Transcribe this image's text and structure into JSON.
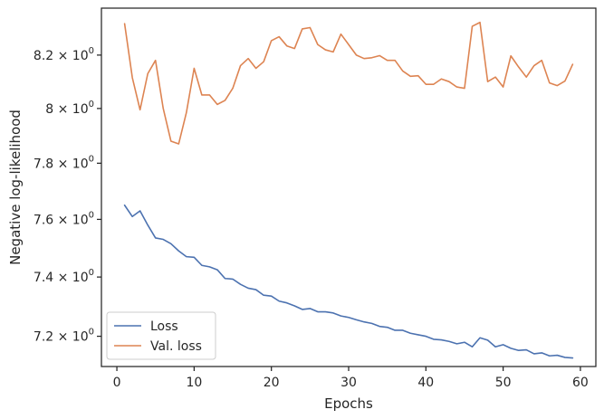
{
  "chart_data": {
    "type": "line",
    "xlabel": "Epochs",
    "ylabel": "Negative log-likelihood",
    "xlim": [
      -2,
      62
    ],
    "ylim": [
      7.1,
      8.38
    ],
    "y_scale": "log",
    "x_ticks": [
      0,
      10,
      20,
      30,
      40,
      50,
      60
    ],
    "x_tick_labels": [
      "0",
      "10",
      "20",
      "30",
      "40",
      "50",
      "60"
    ],
    "y_ticks": [
      7.2,
      7.4,
      7.6,
      7.8,
      8.0,
      8.2
    ],
    "y_tick_labels": [
      {
        "mantissa": "7.2",
        "base": "10",
        "exp": "0"
      },
      {
        "mantissa": "7.4",
        "base": "10",
        "exp": "0"
      },
      {
        "mantissa": "7.6",
        "base": "10",
        "exp": "0"
      },
      {
        "mantissa": "7.8",
        "base": "10",
        "exp": "0"
      },
      {
        "mantissa": "8",
        "base": "10",
        "exp": "0"
      },
      {
        "mantissa": "8.2",
        "base": "10",
        "exp": "0"
      }
    ],
    "grid": false,
    "legend_position": "lower-left",
    "x": [
      1,
      2,
      3,
      4,
      5,
      6,
      7,
      8,
      9,
      10,
      11,
      12,
      13,
      14,
      15,
      16,
      17,
      18,
      19,
      20,
      21,
      22,
      23,
      24,
      25,
      26,
      27,
      28,
      29,
      30,
      31,
      32,
      33,
      34,
      35,
      36,
      37,
      38,
      39,
      40,
      41,
      42,
      43,
      44,
      45,
      46,
      47,
      48,
      49,
      50,
      51,
      52,
      53,
      54,
      55,
      56,
      57,
      58,
      59
    ],
    "series": [
      {
        "name": "Loss",
        "color": "#4c72b0",
        "values": [
          7.65,
          7.61,
          7.63,
          7.58,
          7.535,
          7.53,
          7.515,
          7.49,
          7.47,
          7.468,
          7.44,
          7.435,
          7.425,
          7.395,
          7.393,
          7.375,
          7.362,
          7.357,
          7.338,
          7.335,
          7.318,
          7.312,
          7.302,
          7.29,
          7.293,
          7.282,
          7.282,
          7.278,
          7.268,
          7.263,
          7.255,
          7.248,
          7.243,
          7.233,
          7.23,
          7.22,
          7.22,
          7.21,
          7.205,
          7.2,
          7.19,
          7.188,
          7.183,
          7.175,
          7.18,
          7.165,
          7.195,
          7.187,
          7.165,
          7.172,
          7.16,
          7.153,
          7.155,
          7.142,
          7.145,
          7.135,
          7.137,
          7.13,
          7.128
        ]
      },
      {
        "name": "Val. loss",
        "color": "#dd8452",
        "values": [
          8.32,
          8.115,
          7.995,
          8.13,
          8.18,
          8.0,
          7.88,
          7.87,
          7.985,
          8.15,
          8.05,
          8.05,
          8.015,
          8.03,
          8.075,
          8.16,
          8.187,
          8.15,
          8.175,
          8.255,
          8.27,
          8.235,
          8.225,
          8.3,
          8.305,
          8.24,
          8.22,
          8.212,
          8.28,
          8.24,
          8.2,
          8.187,
          8.19,
          8.198,
          8.18,
          8.18,
          8.14,
          8.12,
          8.122,
          8.09,
          8.09,
          8.11,
          8.1,
          8.08,
          8.075,
          8.31,
          8.325,
          8.1,
          8.117,
          8.08,
          8.197,
          8.155,
          8.117,
          8.16,
          8.18,
          8.095,
          8.085,
          8.102,
          8.165
        ]
      }
    ]
  }
}
